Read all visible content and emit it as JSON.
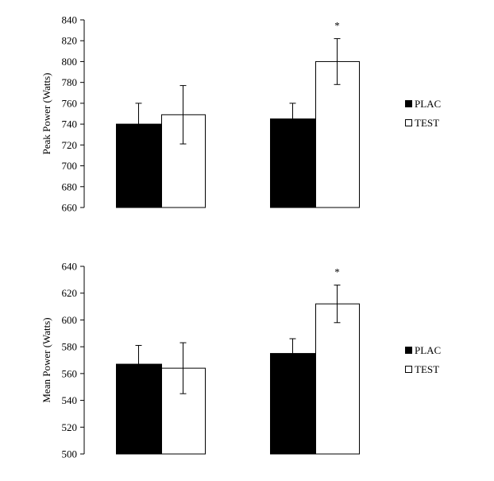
{
  "chart_data": [
    {
      "type": "bar",
      "title": "",
      "xlabel": "",
      "ylabel": "Peak Power (Watts)",
      "ylim": [
        660,
        840
      ],
      "yticks": [
        660,
        680,
        700,
        720,
        740,
        760,
        780,
        800,
        820,
        840
      ],
      "grid": false,
      "legend": "right",
      "groups": 2,
      "series": [
        {
          "name": "PLAC",
          "color": "#000000",
          "values": [
            740,
            745
          ],
          "errors": [
            20,
            15
          ]
        },
        {
          "name": "TEST",
          "color": "#ffffff",
          "values": [
            749,
            800
          ],
          "errors": [
            28,
            22
          ]
        }
      ],
      "annotations": [
        {
          "group": 1,
          "series": "TEST",
          "text": "*"
        }
      ]
    },
    {
      "type": "bar",
      "title": "",
      "xlabel": "",
      "ylabel": "Mean Power (Watts)",
      "ylim": [
        500,
        640
      ],
      "yticks": [
        500,
        520,
        540,
        560,
        580,
        600,
        620,
        640
      ],
      "grid": false,
      "legend": "right",
      "groups": 2,
      "series": [
        {
          "name": "PLAC",
          "color": "#000000",
          "values": [
            567,
            575
          ],
          "errors": [
            14,
            11
          ]
        },
        {
          "name": "TEST",
          "color": "#ffffff",
          "values": [
            564,
            612
          ],
          "errors": [
            19,
            14
          ]
        }
      ],
      "annotations": [
        {
          "group": 1,
          "series": "TEST",
          "text": "*"
        }
      ]
    }
  ]
}
